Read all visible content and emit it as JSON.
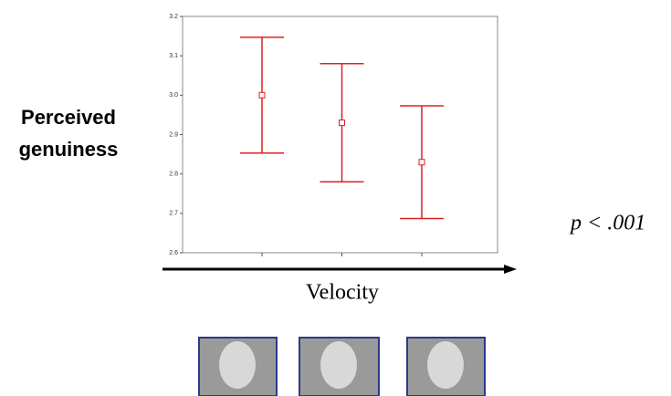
{
  "chart_data": {
    "type": "errorbar",
    "ylabel": [
      "Perceived",
      "genuiness"
    ],
    "xlabel": "Velocity",
    "annotation": "p < .001",
    "categories": [
      null,
      null,
      null
    ],
    "values": [
      3.0,
      2.93,
      2.83
    ],
    "errors": [
      0.147,
      0.15,
      0.143
    ],
    "color": "#e02020",
    "ylim": [
      2.6,
      3.2
    ],
    "yticks": [
      {
        "value": 2.6,
        "label": "2.6"
      },
      {
        "value": 2.7,
        "label": "2.7"
      },
      {
        "value": 2.8,
        "label": "2.8"
      },
      {
        "value": 2.9,
        "label": "2.9"
      },
      {
        "value": 3,
        "label": "3.0"
      },
      {
        "value": 3.1,
        "label": "3.1"
      },
      {
        "value": 3.2,
        "label": "3.2"
      }
    ]
  }
}
